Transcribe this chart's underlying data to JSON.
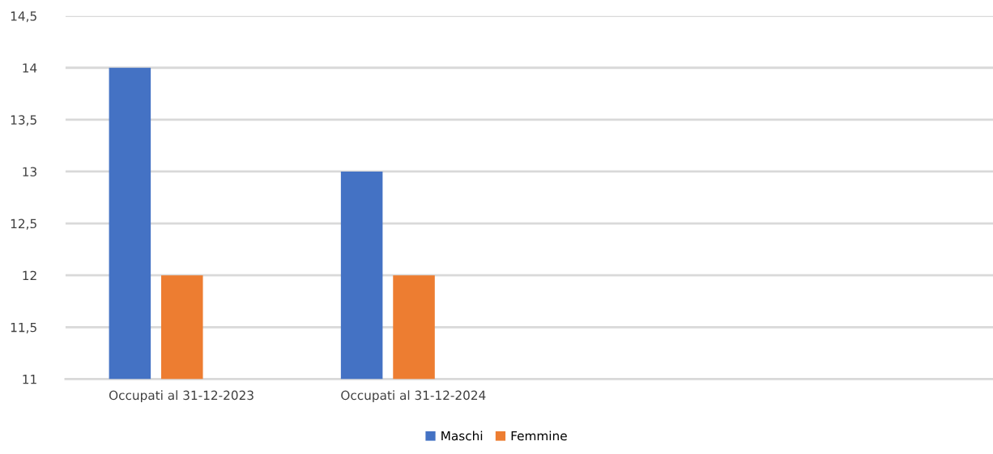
{
  "chart_data": {
    "type": "bar",
    "categories": [
      "Occupati al 31-12-2023",
      "Occupati al 31-12-2024",
      null,
      null
    ],
    "series": [
      {
        "name": "Maschi",
        "color": "#4472c4",
        "values": [
          14,
          13,
          null,
          null
        ]
      },
      {
        "name": "Femmine",
        "color": "#ed7d31",
        "values": [
          12,
          12,
          null,
          null
        ]
      }
    ],
    "ylim": [
      11,
      14.5
    ],
    "yticks": [
      11,
      {
        "value": 11.5,
        "label": "11,5"
      },
      12,
      {
        "value": 12.5,
        "label": "12,5"
      },
      13,
      {
        "value": 13.5,
        "label": "13,5"
      },
      14,
      {
        "value": 14.5,
        "label": "14,5"
      }
    ],
    "grid": "y",
    "legend": "bottom"
  }
}
